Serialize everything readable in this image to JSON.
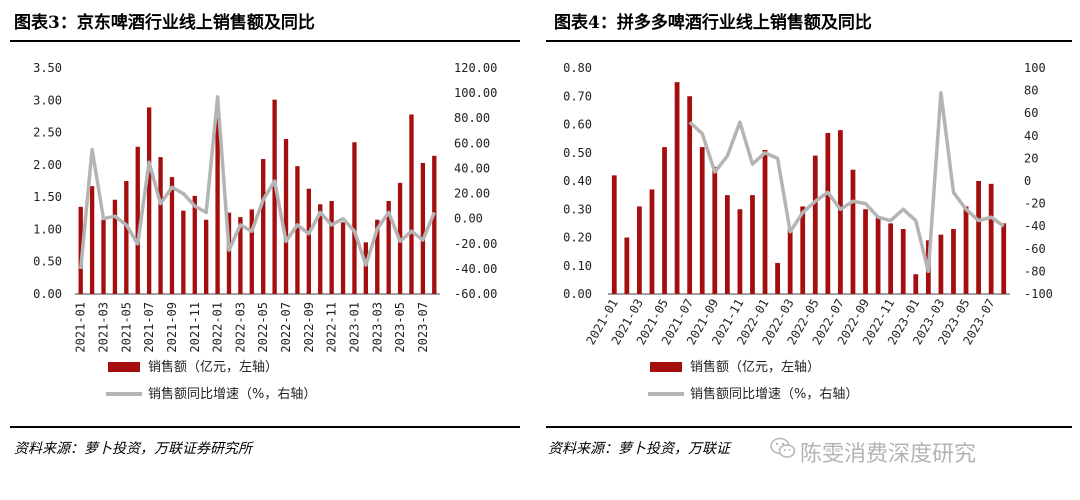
{
  "chart_data": [
    {
      "type": "bar",
      "title": "图表3：京东啤酒行业线上销售额及同比",
      "source": "资料来源：萝卜投资，万联证券研究所",
      "categories": [
        "2021-01",
        "2021-02",
        "2021-03",
        "2021-04",
        "2021-05",
        "2021-06",
        "2021-07",
        "2021-08",
        "2021-09",
        "2021-10",
        "2021-11",
        "2021-12",
        "2022-01",
        "2022-02",
        "2022-03",
        "2022-04",
        "2022-05",
        "2022-06",
        "2022-07",
        "2022-08",
        "2022-09",
        "2022-10",
        "2022-11",
        "2022-12",
        "2023-01",
        "2023-02",
        "2023-03",
        "2023-04",
        "2023-05",
        "2023-06",
        "2023-07",
        "2023-08"
      ],
      "x_tick_labels": [
        "2021-01",
        "2021-03",
        "2021-05",
        "2021-07",
        "2021-09",
        "2021-11",
        "2022-01",
        "2022-03",
        "2022-05",
        "2022-07",
        "2022-09",
        "2022-11",
        "2023-01",
        "2023-03",
        "2023-05",
        "2023-07"
      ],
      "series": [
        {
          "name": "销售额（亿元，左轴）",
          "axis": "left",
          "type": "bar",
          "color": "#a50e0e",
          "values": [
            1.35,
            1.67,
            1.15,
            1.46,
            1.75,
            2.28,
            2.89,
            2.12,
            1.81,
            1.29,
            1.52,
            1.15,
            2.72,
            1.26,
            1.19,
            1.31,
            2.09,
            3.01,
            2.4,
            1.98,
            1.63,
            1.39,
            1.44,
            1.11,
            2.35,
            0.8,
            1.15,
            1.44,
            1.72,
            2.78,
            2.03,
            2.14
          ]
        },
        {
          "name": "销售额同比增速（%，右轴）",
          "axis": "right",
          "type": "line",
          "color": "#b4b4b4",
          "values": [
            -40,
            55,
            0,
            2,
            -5,
            -20,
            45,
            12,
            25,
            20,
            10,
            5,
            97,
            -25,
            -5,
            -10,
            15,
            30,
            -18,
            -5,
            -12,
            5,
            -5,
            0,
            -10,
            -37,
            -8,
            5,
            -18,
            -10,
            -17,
            5
          ]
        }
      ],
      "ylim_left": [
        0,
        3.5
      ],
      "ylim_right": [
        -60,
        120
      ],
      "left_ticks": [
        "0.00",
        "0.50",
        "1.00",
        "1.50",
        "2.00",
        "2.50",
        "3.00",
        "3.50"
      ],
      "right_ticks": [
        "-60.00",
        "-40.00",
        "-20.00",
        "0.00",
        "20.00",
        "40.00",
        "60.00",
        "80.00",
        "100.00",
        "120.00"
      ],
      "legend": "bottom"
    },
    {
      "type": "bar",
      "title": "图表4：拼多多啤酒行业线上销售额及同比",
      "source": "资料来源：萝卜投资，万联证",
      "categories": [
        "2021-01",
        "2021-02",
        "2021-03",
        "2021-04",
        "2021-05",
        "2021-06",
        "2021-07",
        "2021-08",
        "2021-09",
        "2021-10",
        "2021-11",
        "2021-12",
        "2022-01",
        "2022-02",
        "2022-03",
        "2022-04",
        "2022-05",
        "2022-06",
        "2022-07",
        "2022-08",
        "2022-09",
        "2022-10",
        "2022-11",
        "2022-12",
        "2023-01",
        "2023-02",
        "2023-03",
        "2023-04",
        "2023-05",
        "2023-06",
        "2023-07",
        "2023-08"
      ],
      "x_tick_labels": [
        "2021-01",
        "2021-03",
        "2021-05",
        "2021-07",
        "2021-09",
        "2021-11",
        "2022-01",
        "2022-03",
        "2022-05",
        "2022-07",
        "2022-09",
        "2022-11",
        "2023-01",
        "2023-03",
        "2023-05",
        "2023-07"
      ],
      "series": [
        {
          "name": "销售额（亿元，左轴）",
          "axis": "left",
          "type": "bar",
          "color": "#a50e0e",
          "values": [
            0.42,
            0.2,
            0.31,
            0.37,
            0.52,
            0.75,
            0.7,
            0.52,
            0.45,
            0.35,
            0.3,
            0.35,
            0.51,
            0.11,
            0.23,
            0.31,
            0.49,
            0.57,
            0.58,
            0.44,
            0.3,
            0.27,
            0.25,
            0.23,
            0.07,
            0.19,
            0.21,
            0.23,
            0.31,
            0.4,
            0.39,
            0.25
          ]
        },
        {
          "name": "销售额同比增速（%，右轴）",
          "axis": "right",
          "type": "line",
          "color": "#b4b4b4",
          "values": [
            null,
            null,
            null,
            null,
            null,
            null,
            52,
            42,
            8,
            22,
            52,
            15,
            25,
            20,
            -45,
            -28,
            -18,
            -10,
            -25,
            -18,
            -20,
            -32,
            -35,
            -25,
            -35,
            -80,
            78,
            -10,
            -25,
            -35,
            -32,
            -40
          ]
        }
      ],
      "ylim_left": [
        0,
        0.8
      ],
      "ylim_right": [
        -100,
        100
      ],
      "left_ticks": [
        "0.00",
        "0.10",
        "0.20",
        "0.30",
        "0.40",
        "0.50",
        "0.60",
        "0.70",
        "0.80"
      ],
      "right_ticks": [
        "-100",
        "-80",
        "-60",
        "-40",
        "-20",
        "0",
        "20",
        "40",
        "60",
        "80",
        "100"
      ],
      "legend": "bottom"
    }
  ],
  "watermark": "陈雯消费深度研究"
}
